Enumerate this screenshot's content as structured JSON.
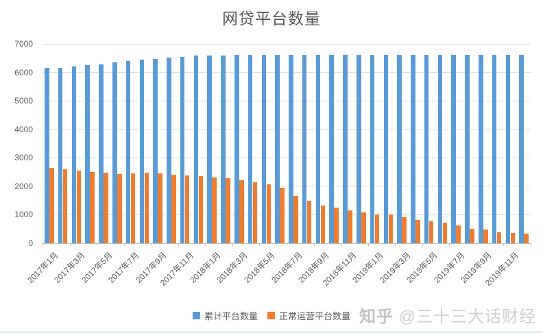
{
  "page": {
    "watermark_brand": "知乎",
    "watermark_handle": "@三十三大话财经"
  },
  "colors": {
    "cumulative_blue": "#5B9BD5",
    "operating_orange": "#ED7D31",
    "gridline": "#d9d9d9",
    "text_gray": "#595959",
    "watermark_gray": "#d0d0d0"
  },
  "chart_data": {
    "type": "bar",
    "title": "网贷平台数量",
    "xlabel": "",
    "ylabel": "",
    "ylim": [
      0,
      7000
    ],
    "ytick_step": 1000,
    "grid": true,
    "legend_position": "bottom",
    "x_label_interval": 2,
    "categories": [
      "2017年1月",
      "2017年2月",
      "2017年3月",
      "2017年4月",
      "2017年5月",
      "2017年6月",
      "2017年7月",
      "2017年8月",
      "2017年9月",
      "2017年10月",
      "2017年11月",
      "2017年12月",
      "2018年1月",
      "2018年2月",
      "2018年3月",
      "2018年4月",
      "2018年5月",
      "2018年6月",
      "2018年7月",
      "2018年8月",
      "2018年9月",
      "2018年10月",
      "2018年11月",
      "2018年12月",
      "2019年1月",
      "2019年2月",
      "2019年3月",
      "2019年4月",
      "2019年5月",
      "2019年6月",
      "2019年7月",
      "2019年8月",
      "2019年9月",
      "2019年10月",
      "2019年11月",
      "2019年12月"
    ],
    "series": [
      {
        "name": "累计平台数量",
        "color": "#5B9BD5",
        "values": [
          6150,
          6160,
          6200,
          6250,
          6290,
          6350,
          6400,
          6440,
          6480,
          6510,
          6550,
          6580,
          6590,
          6600,
          6610,
          6615,
          6620,
          6620,
          6620,
          6620,
          6620,
          6620,
          6620,
          6620,
          6620,
          6620,
          6620,
          6620,
          6620,
          6620,
          6620,
          6620,
          6620,
          6620,
          6620,
          6620
        ]
      },
      {
        "name": "正常运营平台数量",
        "color": "#ED7D31",
        "values": [
          2650,
          2600,
          2550,
          2500,
          2470,
          2440,
          2450,
          2480,
          2450,
          2400,
          2390,
          2350,
          2320,
          2280,
          2210,
          2140,
          2070,
          1950,
          1650,
          1490,
          1330,
          1240,
          1160,
          1080,
          1020,
          1000,
          925,
          820,
          775,
          720,
          620,
          500,
          470,
          390,
          350,
          330
        ]
      }
    ]
  }
}
